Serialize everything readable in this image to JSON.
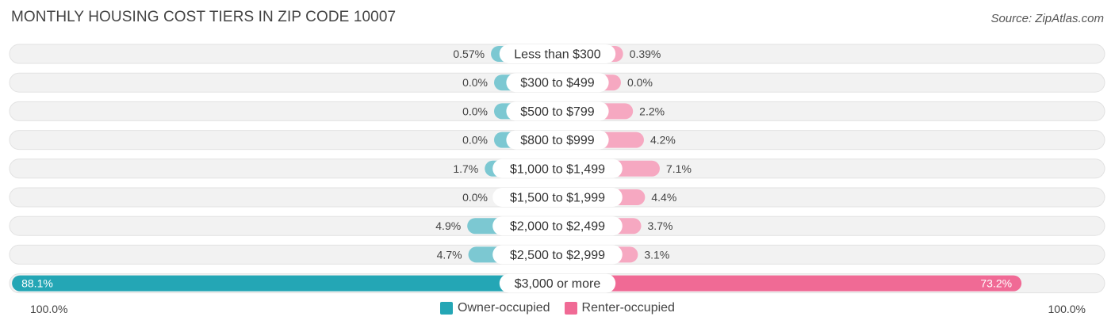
{
  "chart_data": {
    "type": "bar",
    "title": "MONTHLY HOUSING COST TIERS IN ZIP CODE 10007",
    "source": "Source: ZipAtlas.com",
    "categories": [
      "Less than $300",
      "$300 to $499",
      "$500 to $799",
      "$800 to $999",
      "$1,000 to $1,499",
      "$1,500 to $1,999",
      "$2,000 to $2,499",
      "$2,500 to $2,999",
      "$3,000 or more"
    ],
    "series": [
      {
        "name": "Owner-occupied",
        "color": "#7cc8d2",
        "highlight_color": "#24a6b5",
        "values": [
          0.57,
          0.0,
          0.0,
          0.0,
          1.7,
          0.0,
          4.9,
          4.7,
          88.1
        ],
        "labels": [
          "0.57%",
          "0.0%",
          "0.0%",
          "0.0%",
          "1.7%",
          "0.0%",
          "4.9%",
          "4.7%",
          "88.1%"
        ]
      },
      {
        "name": "Renter-occupied",
        "color": "#f6a8c1",
        "highlight_color": "#f06a95",
        "values": [
          0.39,
          0.0,
          2.2,
          4.2,
          7.1,
          4.4,
          3.7,
          3.1,
          73.2
        ],
        "labels": [
          "0.39%",
          "0.0%",
          "2.2%",
          "4.2%",
          "7.1%",
          "4.4%",
          "3.7%",
          "3.1%",
          "73.2%"
        ]
      }
    ],
    "axis_left_label": "100.0%",
    "axis_right_label": "100.0%",
    "xlim": [
      0,
      100
    ],
    "legend_position": "bottom-center"
  }
}
